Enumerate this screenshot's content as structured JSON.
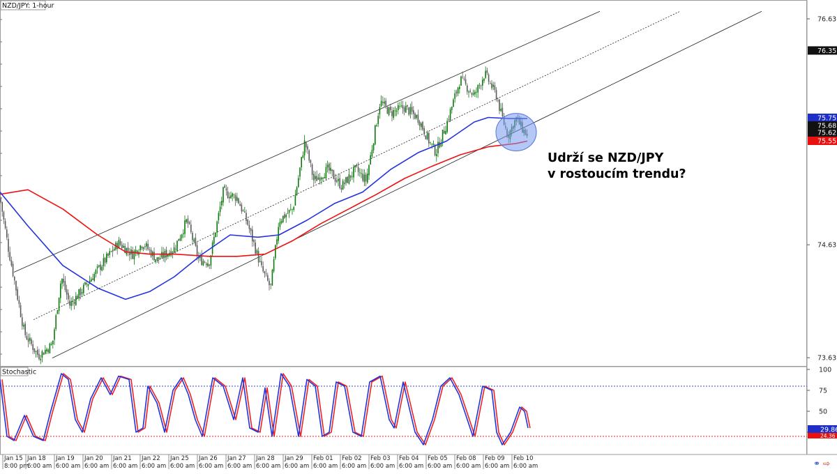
{
  "window": {
    "symbol_label": "NZD/JPY: 1-hour"
  },
  "indicator": {
    "name": "Stochastic"
  },
  "annotation": {
    "line1": "Udrží se NZD/JPY",
    "line2": "v rostoucím trendu?"
  },
  "colors": {
    "bull": "#0a7a0a",
    "bear": "#5a5a5a",
    "ma_blue": "#2233dd",
    "ma_red": "#ee1111",
    "channel": "#222222",
    "stoch_k": "#2233dd",
    "stoch_d": "#ee2222",
    "highlight_fill": "#7799ee",
    "label_blue_bg": "#1f2ec7",
    "label_red_bg": "#e8110f",
    "label_dark_bg": "#111111",
    "overbought_line": "#3344cc",
    "oversold_line": "#ee2222"
  },
  "icons": [
    "link-icon",
    "arrow-right-icon"
  ],
  "chart_data": [
    {
      "type": "candlestick",
      "title": "NZD/JPY: 1-hour",
      "ylim": [
        73.56,
        76.8
      ],
      "y_ticks": [
        "76.633",
        "74.633",
        "73.633"
      ],
      "price_labels": [
        {
          "value": "76.353",
          "color": "dark"
        },
        {
          "value": "75.753",
          "color": "blue"
        },
        {
          "value": "75.687",
          "color": "dark"
        },
        {
          "value": "75.625",
          "color": "dark"
        },
        {
          "value": "75.551",
          "color": "red"
        }
      ],
      "x_date_labels": [
        "Jan 15",
        "Jan 18",
        "Jan 19",
        "Jan 20",
        "Jan 21",
        "Jan 22",
        "Jan 25",
        "Jan 26",
        "Jan 27",
        "Jan 28",
        "Jan 29",
        "Feb 01",
        "Feb 02",
        "Feb 03",
        "Feb 04",
        "Feb 05",
        "Feb 08",
        "Feb 09",
        "Feb 10"
      ],
      "x_time_labels": [
        "8:00 pm",
        "6:00 am",
        "6:00 am",
        "6:00 am",
        "6:00 am",
        "6:00 am",
        "6:00 am",
        "6:00 am",
        "6:00 am",
        "6:00 am",
        "6:00 am",
        "6:00 am",
        "6:00 am",
        "6:00 am",
        "6:00 am",
        "6:00 am",
        "6:00 am",
        "6:00 am",
        "6:00 am"
      ],
      "price_path_keypoints": [
        [
          0,
          75.05
        ],
        [
          12,
          74.6
        ],
        [
          35,
          73.85
        ],
        [
          55,
          73.65
        ],
        [
          75,
          73.75
        ],
        [
          88,
          74.35
        ],
        [
          100,
          74.1
        ],
        [
          120,
          74.25
        ],
        [
          145,
          74.45
        ],
        [
          170,
          74.65
        ],
        [
          190,
          74.55
        ],
        [
          205,
          74.65
        ],
        [
          225,
          74.5
        ],
        [
          250,
          74.6
        ],
        [
          268,
          74.85
        ],
        [
          285,
          74.5
        ],
        [
          300,
          74.48
        ],
        [
          320,
          75.1
        ],
        [
          340,
          75.05
        ],
        [
          355,
          74.82
        ],
        [
          375,
          74.42
        ],
        [
          388,
          74.25
        ],
        [
          400,
          74.85
        ],
        [
          420,
          74.95
        ],
        [
          437,
          75.55
        ],
        [
          450,
          75.2
        ],
        [
          470,
          75.3
        ],
        [
          490,
          75.15
        ],
        [
          510,
          75.3
        ],
        [
          525,
          75.2
        ],
        [
          545,
          75.9
        ],
        [
          560,
          75.8
        ],
        [
          580,
          75.85
        ],
        [
          600,
          75.75
        ],
        [
          615,
          75.55
        ],
        [
          625,
          75.45
        ],
        [
          640,
          75.7
        ],
        [
          660,
          76.1
        ],
        [
          680,
          75.95
        ],
        [
          695,
          76.15
        ],
        [
          712,
          75.95
        ],
        [
          718,
          75.8
        ],
        [
          728,
          75.6
        ],
        [
          740,
          75.75
        ],
        [
          750,
          75.65
        ],
        [
          756,
          75.6
        ]
      ],
      "ma_blue_keypoints": [
        [
          0,
          75.1
        ],
        [
          40,
          74.8
        ],
        [
          90,
          74.45
        ],
        [
          140,
          74.25
        ],
        [
          180,
          74.15
        ],
        [
          215,
          74.22
        ],
        [
          250,
          74.35
        ],
        [
          290,
          74.55
        ],
        [
          330,
          74.72
        ],
        [
          370,
          74.7
        ],
        [
          400,
          74.72
        ],
        [
          440,
          74.85
        ],
        [
          480,
          75.0
        ],
        [
          520,
          75.1
        ],
        [
          560,
          75.3
        ],
        [
          600,
          75.45
        ],
        [
          640,
          75.55
        ],
        [
          680,
          75.72
        ],
        [
          700,
          75.76
        ],
        [
          730,
          75.75
        ],
        [
          756,
          75.75
        ]
      ],
      "ma_red_keypoints": [
        [
          0,
          75.08
        ],
        [
          40,
          75.12
        ],
        [
          90,
          74.95
        ],
        [
          140,
          74.72
        ],
        [
          180,
          74.57
        ],
        [
          215,
          74.55
        ],
        [
          250,
          74.55
        ],
        [
          300,
          74.53
        ],
        [
          340,
          74.53
        ],
        [
          380,
          74.55
        ],
        [
          420,
          74.67
        ],
        [
          460,
          74.82
        ],
        [
          500,
          74.95
        ],
        [
          540,
          75.08
        ],
        [
          580,
          75.22
        ],
        [
          620,
          75.33
        ],
        [
          660,
          75.43
        ],
        [
          700,
          75.5
        ],
        [
          740,
          75.53
        ],
        [
          756,
          75.551
        ]
      ],
      "channel_lower": [
        [
          75,
          73.63
        ],
        [
          1092,
          76.7
        ]
      ],
      "channel_mid": [
        [
          48,
          73.97
        ],
        [
          975,
          76.7
        ]
      ],
      "channel_upper": [
        [
          20,
          74.39
        ],
        [
          860,
          76.7
        ]
      ]
    },
    {
      "type": "line",
      "title": "Stochastic",
      "ylim": [
        0,
        100
      ],
      "y_ticks": [
        "100",
        "75",
        "50",
        "25"
      ],
      "levels": [
        80,
        20
      ],
      "last_values": [
        "29.86",
        "24.36"
      ],
      "k_keypoints": [
        [
          0,
          88
        ],
        [
          10,
          20
        ],
        [
          20,
          15
        ],
        [
          35,
          45
        ],
        [
          48,
          20
        ],
        [
          62,
          15
        ],
        [
          72,
          48
        ],
        [
          88,
          95
        ],
        [
          98,
          88
        ],
        [
          108,
          40
        ],
        [
          118,
          25
        ],
        [
          130,
          65
        ],
        [
          145,
          90
        ],
        [
          158,
          70
        ],
        [
          170,
          92
        ],
        [
          185,
          88
        ],
        [
          195,
          25
        ],
        [
          205,
          30
        ],
        [
          212,
          80
        ],
        [
          225,
          60
        ],
        [
          236,
          25
        ],
        [
          248,
          75
        ],
        [
          260,
          90
        ],
        [
          270,
          70
        ],
        [
          280,
          40
        ],
        [
          290,
          20
        ],
        [
          305,
          90
        ],
        [
          320,
          80
        ],
        [
          335,
          40
        ],
        [
          348,
          90
        ],
        [
          358,
          30
        ],
        [
          370,
          25
        ],
        [
          380,
          78
        ],
        [
          390,
          20
        ],
        [
          403,
          95
        ],
        [
          415,
          80
        ],
        [
          428,
          20
        ],
        [
          440,
          88
        ],
        [
          452,
          80
        ],
        [
          462,
          20
        ],
        [
          472,
          25
        ],
        [
          482,
          85
        ],
        [
          494,
          80
        ],
        [
          506,
          25
        ],
        [
          518,
          20
        ],
        [
          530,
          85
        ],
        [
          545,
          92
        ],
        [
          558,
          40
        ],
        [
          565,
          30
        ],
        [
          578,
          85
        ],
        [
          595,
          25
        ],
        [
          607,
          10
        ],
        [
          620,
          40
        ],
        [
          632,
          80
        ],
        [
          645,
          90
        ],
        [
          658,
          70
        ],
        [
          670,
          40
        ],
        [
          678,
          20
        ],
        [
          692,
          80
        ],
        [
          705,
          75
        ],
        [
          712,
          25
        ],
        [
          720,
          10
        ],
        [
          732,
          25
        ],
        [
          745,
          55
        ],
        [
          752,
          50
        ],
        [
          757,
          30
        ]
      ]
    }
  ]
}
